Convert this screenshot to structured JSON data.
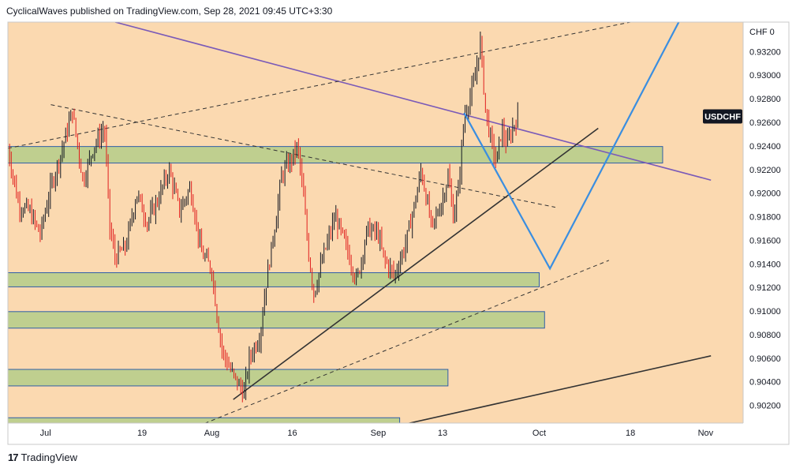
{
  "header": {
    "text": "CyclicalWaves published on TradingView.com, Sep 28, 2021 09:45 UTC+3:30"
  },
  "footer": {
    "logo": "17",
    "brand": "TradingView"
  },
  "colors": {
    "background": "#fbd9b0",
    "zone_fill": "#bfcf8f",
    "zone_border": "#2f5ea8",
    "candle_up": "#131722",
    "candle_down": "#e01e1e",
    "projection": "#3a8ee0",
    "trendline": "#333333",
    "resistance_line": "#7a5ab8",
    "symbol_badge": "#131722"
  },
  "chart_data": {
    "type": "candlestick",
    "symbol_label": "USDCHF",
    "currency_label": "CHF",
    "currency_label_value": "0",
    "y_ticks": [
      "0.93200",
      "0.93000",
      "0.92800",
      "0.92600",
      "0.92400",
      "0.92200",
      "0.92000",
      "0.91800",
      "0.91600",
      "0.91400",
      "0.91200",
      "0.91000",
      "0.90800",
      "0.90600",
      "0.90400",
      "0.90200"
    ],
    "y_range": [
      0.9005,
      0.9345
    ],
    "x_ticks": [
      "Jul",
      "19",
      "Aug",
      "16",
      "Sep",
      "13",
      "Oct",
      "18",
      "Nov"
    ],
    "x_tick_dates": [
      "2021-07-01",
      "2021-07-19",
      "2021-08-01",
      "2021-08-16",
      "2021-09-01",
      "2021-09-13",
      "2021-10-01",
      "2021-10-18",
      "2021-11-01"
    ],
    "x_range": [
      "2021-06-24",
      "2021-11-08"
    ],
    "price_path": [
      [
        "2021-06-24",
        0.9238
      ],
      [
        "2021-06-26",
        0.919
      ],
      [
        "2021-06-28",
        0.9185
      ],
      [
        "2021-06-30",
        0.9165
      ],
      [
        "2021-07-02",
        0.9205
      ],
      [
        "2021-07-04",
        0.9235
      ],
      [
        "2021-07-06",
        0.927
      ],
      [
        "2021-07-08",
        0.921
      ],
      [
        "2021-07-10",
        0.924
      ],
      [
        "2021-07-12",
        0.9255
      ],
      [
        "2021-07-13",
        0.917
      ],
      [
        "2021-07-14",
        0.9145
      ],
      [
        "2021-07-16",
        0.9155
      ],
      [
        "2021-07-18",
        0.92
      ],
      [
        "2021-07-20",
        0.9175
      ],
      [
        "2021-07-22",
        0.9195
      ],
      [
        "2021-07-24",
        0.922
      ],
      [
        "2021-07-26",
        0.9185
      ],
      [
        "2021-07-28",
        0.9205
      ],
      [
        "2021-07-30",
        0.915
      ],
      [
        "2021-08-01",
        0.9135
      ],
      [
        "2021-08-02",
        0.9095
      ],
      [
        "2021-08-03",
        0.9065
      ],
      [
        "2021-08-05",
        0.9045
      ],
      [
        "2021-08-07",
        0.903
      ],
      [
        "2021-08-08",
        0.906
      ],
      [
        "2021-08-10",
        0.908
      ],
      [
        "2021-08-11",
        0.912
      ],
      [
        "2021-08-13",
        0.918
      ],
      [
        "2021-08-14",
        0.9215
      ],
      [
        "2021-08-16",
        0.923
      ],
      [
        "2021-08-17",
        0.924
      ],
      [
        "2021-08-18",
        0.92
      ],
      [
        "2021-08-19",
        0.915
      ],
      [
        "2021-08-20",
        0.9115
      ],
      [
        "2021-08-22",
        0.915
      ],
      [
        "2021-08-24",
        0.918
      ],
      [
        "2021-08-26",
        0.9155
      ],
      [
        "2021-08-28",
        0.9125
      ],
      [
        "2021-08-30",
        0.917
      ],
      [
        "2021-09-01",
        0.9165
      ],
      [
        "2021-09-02",
        0.9145
      ],
      [
        "2021-09-04",
        0.913
      ],
      [
        "2021-09-06",
        0.9155
      ],
      [
        "2021-09-08",
        0.9195
      ],
      [
        "2021-09-09",
        0.922
      ],
      [
        "2021-09-11",
        0.917
      ],
      [
        "2021-09-13",
        0.9195
      ],
      [
        "2021-09-14",
        0.9215
      ],
      [
        "2021-09-15",
        0.918
      ],
      [
        "2021-09-16",
        0.9205
      ],
      [
        "2021-09-17",
        0.9265
      ],
      [
        "2021-09-19",
        0.9295
      ],
      [
        "2021-09-20",
        0.933
      ],
      [
        "2021-09-21",
        0.927
      ],
      [
        "2021-09-22",
        0.9245
      ],
      [
        "2021-09-23",
        0.9225
      ],
      [
        "2021-09-24",
        0.9255
      ],
      [
        "2021-09-25",
        0.924
      ],
      [
        "2021-09-26",
        0.9255
      ],
      [
        "2021-09-27",
        0.9265
      ]
    ],
    "zones": [
      {
        "from": "2021-06-24",
        "to": "2021-10-24",
        "top": 0.92395,
        "bottom": 0.92255
      },
      {
        "from": "2021-06-24",
        "to": "2021-10-01",
        "top": 0.91325,
        "bottom": 0.91205
      },
      {
        "from": "2021-06-24",
        "to": "2021-10-02",
        "top": 0.90995,
        "bottom": 0.90855
      },
      {
        "from": "2021-06-24",
        "to": "2021-09-14",
        "top": 0.90505,
        "bottom": 0.90365
      },
      {
        "from": "2021-06-24",
        "to": "2021-09-05",
        "top": 0.90095,
        "bottom": 0.89955
      }
    ],
    "projection_path": [
      [
        "2021-09-17",
        0.9268
      ],
      [
        "2021-10-03",
        0.9136
      ],
      [
        "2021-10-27",
        0.9345
      ]
    ],
    "lines": [
      {
        "style": "solid",
        "color": "resistance_line",
        "points": [
          [
            "2021-07-14",
            0.9345
          ],
          [
            "2021-11-02",
            0.9211
          ]
        ]
      },
      {
        "style": "solid",
        "color": "trendline",
        "points": [
          [
            "2021-08-05",
            0.9025
          ],
          [
            "2021-10-12",
            0.9255
          ]
        ]
      },
      {
        "style": "dashed",
        "color": "trendline",
        "points": [
          [
            "2021-06-24",
            0.9238
          ],
          [
            "2021-10-18",
            0.9345
          ]
        ]
      },
      {
        "style": "dashed",
        "color": "trendline",
        "points": [
          [
            "2021-07-02",
            0.9275
          ],
          [
            "2021-10-04",
            0.9188
          ]
        ]
      },
      {
        "style": "dashed",
        "color": "trendline",
        "points": [
          [
            "2021-07-27",
            0.8998
          ],
          [
            "2021-10-14",
            0.9143
          ]
        ]
      },
      {
        "style": "solid",
        "color": "trendline",
        "points": [
          [
            "2021-08-31",
            0.8998
          ],
          [
            "2021-11-02",
            0.9062
          ]
        ]
      }
    ]
  }
}
